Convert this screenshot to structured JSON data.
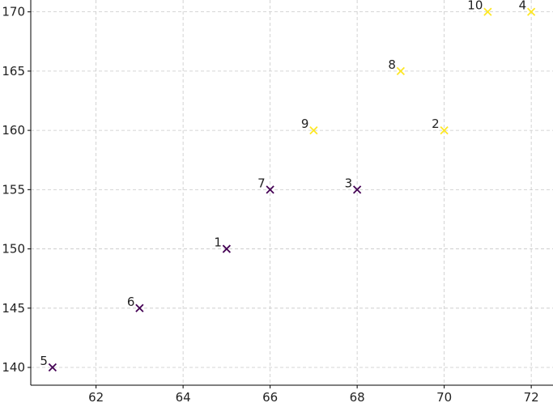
{
  "chart_data": {
    "type": "scatter",
    "title": "",
    "xlabel": "",
    "ylabel": "",
    "xlim": [
      60.5,
      72.5
    ],
    "ylim": [
      138.5,
      171
    ],
    "x_ticks": [
      62,
      64,
      66,
      68,
      70,
      72
    ],
    "y_ticks": [
      140,
      145,
      150,
      155,
      160,
      165,
      170
    ],
    "grid": true,
    "marker": "x",
    "colors": {
      "class_0": "#440154",
      "class_1": "#fde725"
    },
    "points": [
      {
        "label": "1",
        "x": 65,
        "y": 150,
        "class": 0
      },
      {
        "label": "2",
        "x": 70,
        "y": 160,
        "class": 1
      },
      {
        "label": "3",
        "x": 68,
        "y": 155,
        "class": 0
      },
      {
        "label": "4",
        "x": 72,
        "y": 170,
        "class": 1
      },
      {
        "label": "5",
        "x": 61,
        "y": 140,
        "class": 0
      },
      {
        "label": "6",
        "x": 63,
        "y": 145,
        "class": 0
      },
      {
        "label": "7",
        "x": 66,
        "y": 155,
        "class": 0
      },
      {
        "label": "8",
        "x": 69,
        "y": 165,
        "class": 1
      },
      {
        "label": "9",
        "x": 67,
        "y": 160,
        "class": 1
      },
      {
        "label": "10",
        "x": 71,
        "y": 170,
        "class": 1
      }
    ]
  }
}
